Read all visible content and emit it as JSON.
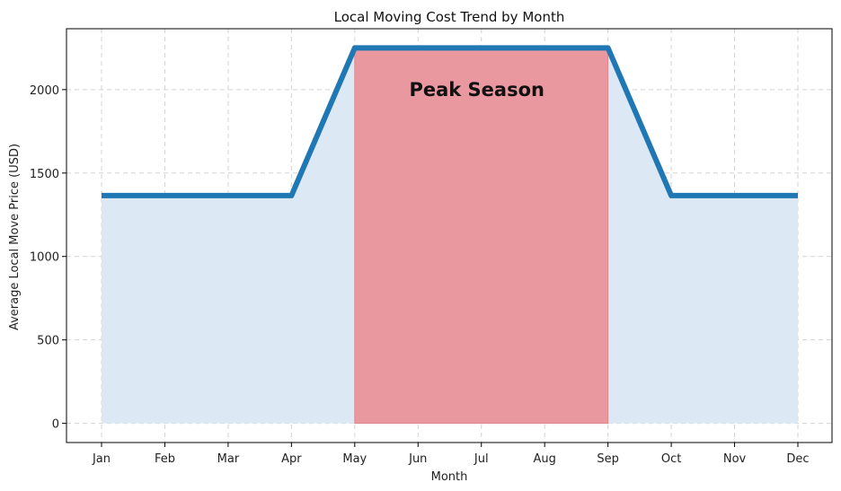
{
  "chart_data": {
    "type": "area",
    "title": "Local Moving Cost Trend by Month",
    "xlabel": "Month",
    "ylabel": "Average Local Move Price (USD)",
    "categories": [
      "Jan",
      "Feb",
      "Mar",
      "Apr",
      "May",
      "Jun",
      "Jul",
      "Aug",
      "Sep",
      "Oct",
      "Nov",
      "Dec"
    ],
    "series": [
      {
        "values": [
          1365,
          1365,
          1365,
          1365,
          2250,
          2250,
          2250,
          2250,
          2250,
          1365,
          1365,
          1365
        ]
      }
    ],
    "ylim": [
      -115,
      2365
    ],
    "yticks": [
      0,
      500,
      1000,
      1500,
      2000
    ],
    "grid": true,
    "highlight": {
      "label": "Peak Season",
      "from": "May",
      "to": "Sep"
    },
    "colors": {
      "line": "#1f77b4",
      "area_fill": "#dce9f4",
      "highlight_fill": "#e8989e",
      "grid": "#d3d3d3"
    }
  }
}
